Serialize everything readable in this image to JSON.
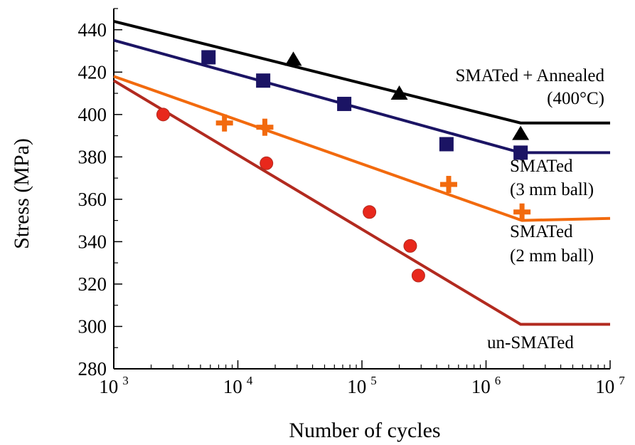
{
  "chart_data": {
    "type": "line",
    "xlabel": "Number of cycles",
    "ylabel": "Stress (MPa)",
    "x_scale": "log",
    "xlim": [
      1000,
      10000000
    ],
    "ylim": [
      280,
      450
    ],
    "y_ticks": [
      280,
      300,
      320,
      340,
      360,
      380,
      400,
      420,
      440
    ],
    "x_ticks": [
      {
        "value": 1000,
        "base": "10",
        "exp": "3"
      },
      {
        "value": 10000,
        "base": "10",
        "exp": "4"
      },
      {
        "value": 100000,
        "base": "10",
        "exp": "5"
      },
      {
        "value": 1000000,
        "base": "10",
        "exp": "6"
      },
      {
        "value": 10000000,
        "base": "10",
        "exp": "7"
      }
    ],
    "grid": false,
    "series": [
      {
        "name": "SMATed + Annealed",
        "name_line2": "(400°C)",
        "color": "#000000",
        "marker": "triangle",
        "points": [
          [
            28000,
            426
          ],
          [
            200000,
            410
          ],
          [
            1900000,
            391
          ]
        ],
        "fit": [
          [
            1000,
            444
          ],
          [
            1900000,
            396
          ],
          [
            10000000,
            396
          ]
        ]
      },
      {
        "name": "SMATed",
        "name_line2": "(3 mm ball)",
        "color": "#1b1464",
        "marker": "square",
        "points": [
          [
            5800,
            427
          ],
          [
            16000,
            416
          ],
          [
            72000,
            405
          ],
          [
            480000,
            386
          ],
          [
            1900000,
            382
          ]
        ],
        "fit": [
          [
            1000,
            435
          ],
          [
            1900000,
            382
          ],
          [
            10000000,
            382
          ]
        ]
      },
      {
        "name": "SMATed",
        "name_line2": "(2 mm ball)",
        "color": "#f26a0e",
        "marker": "plus",
        "points": [
          [
            7800,
            396
          ],
          [
            16500,
            394
          ],
          [
            500000,
            367
          ],
          [
            1950000,
            354
          ]
        ],
        "fit": [
          [
            1000,
            418
          ],
          [
            1950000,
            350
          ],
          [
            10000000,
            351
          ]
        ]
      },
      {
        "name": "un-SMATed",
        "name_line2": "",
        "color": "#b22a1f",
        "marker": "circle",
        "points": [
          [
            2500,
            400
          ],
          [
            17000,
            377
          ],
          [
            115000,
            354
          ],
          [
            245000,
            338
          ],
          [
            285000,
            324
          ]
        ],
        "fit": [
          [
            1000,
            416
          ],
          [
            1900000,
            301
          ],
          [
            10000000,
            301
          ]
        ]
      }
    ]
  }
}
